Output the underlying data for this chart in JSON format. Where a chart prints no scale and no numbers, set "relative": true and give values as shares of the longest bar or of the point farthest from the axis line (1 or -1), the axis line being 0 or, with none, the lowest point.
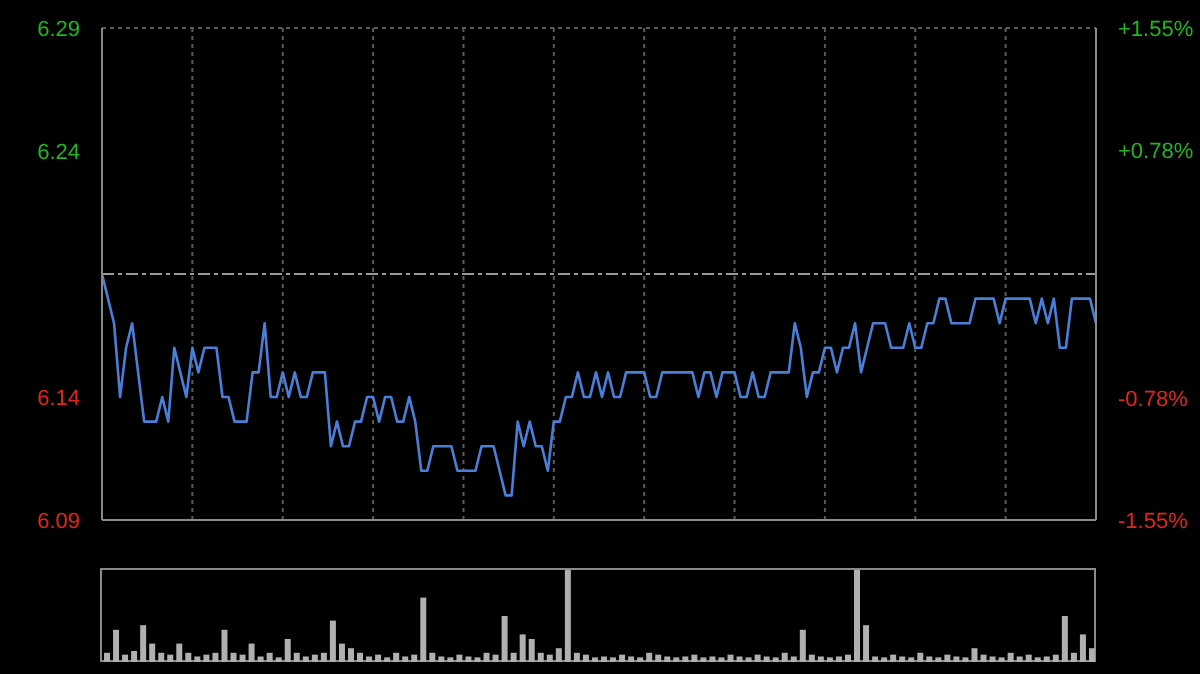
{
  "chart_data": [
    {
      "type": "line",
      "categories": [
        null,
        null,
        null,
        null,
        null,
        null,
        null,
        null,
        null,
        null,
        null,
        null,
        null,
        null,
        null,
        null,
        null,
        null,
        null,
        null,
        null,
        null,
        null,
        null,
        null,
        null,
        null,
        null,
        null,
        null,
        null,
        null,
        null,
        null,
        null,
        null,
        null,
        null,
        null,
        null,
        null,
        null,
        null,
        null,
        null,
        null,
        null,
        null,
        null,
        null,
        null,
        null,
        null,
        null,
        null,
        null,
        null,
        null,
        null,
        null,
        null,
        null,
        null,
        null,
        null,
        null,
        null,
        null,
        null,
        null,
        null,
        null,
        null,
        null,
        null,
        null,
        null,
        null,
        null,
        null,
        null,
        null,
        null,
        null,
        null,
        null,
        null,
        null,
        null,
        null,
        null,
        null,
        null,
        null,
        null,
        null,
        null,
        null,
        null,
        null,
        null,
        null,
        null,
        null,
        null,
        null,
        null,
        null,
        null,
        null,
        null,
        null,
        null,
        null,
        null,
        null,
        null,
        null,
        null,
        null,
        null,
        null,
        null,
        null,
        null,
        null,
        null,
        null,
        null,
        null,
        null,
        null,
        null,
        null,
        null,
        null,
        null,
        null,
        null,
        null,
        null,
        null,
        null,
        null,
        null,
        null,
        null,
        null,
        null,
        null,
        null,
        null,
        null,
        null,
        null,
        null,
        null,
        null,
        null,
        null,
        null,
        null,
        null,
        null,
        null,
        null
      ],
      "series": [
        {
          "color": "#4a7fd8",
          "values": [
            6.19,
            6.18,
            6.17,
            6.14,
            6.16,
            6.17,
            6.15,
            6.13,
            6.13,
            6.13,
            6.14,
            6.13,
            6.16,
            6.15,
            6.14,
            6.16,
            6.15,
            6.16,
            6.16,
            6.16,
            6.14,
            6.14,
            6.13,
            6.13,
            6.13,
            6.15,
            6.15,
            6.17,
            6.14,
            6.14,
            6.15,
            6.14,
            6.15,
            6.14,
            6.14,
            6.15,
            6.15,
            6.15,
            6.12,
            6.13,
            6.12,
            6.12,
            6.13,
            6.13,
            6.14,
            6.14,
            6.13,
            6.14,
            6.14,
            6.13,
            6.13,
            6.14,
            6.13,
            6.11,
            6.11,
            6.12,
            6.12,
            6.12,
            6.12,
            6.11,
            6.11,
            6.11,
            6.11,
            6.12,
            6.12,
            6.12,
            6.11,
            6.1,
            6.1,
            6.13,
            6.12,
            6.13,
            6.12,
            6.12,
            6.11,
            6.13,
            6.13,
            6.14,
            6.14,
            6.15,
            6.14,
            6.14,
            6.15,
            6.14,
            6.15,
            6.14,
            6.14,
            6.15,
            6.15,
            6.15,
            6.15,
            6.14,
            6.14,
            6.15,
            6.15,
            6.15,
            6.15,
            6.15,
            6.15,
            6.14,
            6.15,
            6.15,
            6.14,
            6.15,
            6.15,
            6.15,
            6.14,
            6.14,
            6.15,
            6.14,
            6.14,
            6.15,
            6.15,
            6.15,
            6.15,
            6.17,
            6.16,
            6.14,
            6.15,
            6.15,
            6.16,
            6.16,
            6.15,
            6.16,
            6.16,
            6.17,
            6.15,
            6.16,
            6.17,
            6.17,
            6.17,
            6.16,
            6.16,
            6.16,
            6.17,
            6.16,
            6.16,
            6.17,
            6.17,
            6.18,
            6.18,
            6.17,
            6.17,
            6.17,
            6.17,
            6.18,
            6.18,
            6.18,
            6.18,
            6.17,
            6.18,
            6.18,
            6.18,
            6.18,
            6.18,
            6.17,
            6.18,
            6.17,
            6.18,
            6.16,
            6.16,
            6.18,
            6.18,
            6.18,
            6.18,
            6.17
          ]
        }
      ],
      "ylim": [
        6.09,
        6.29
      ],
      "yticks": [
        6.09,
        6.14,
        6.24,
        6.29
      ],
      "y2lim": [
        -1.55,
        1.55
      ],
      "y2ticks": [
        {
          "value": -1.55,
          "label": "-1.55%"
        },
        {
          "value": -0.78,
          "label": "-0.78%"
        },
        {
          "value": 0.78,
          "label": "+0.78%"
        },
        {
          "value": 1.55,
          "label": "+1.55%"
        }
      ],
      "ref_lines": [
        {
          "axis": "y",
          "value": 6.19,
          "label": null,
          "color": "#9a9a9a",
          "line_style": "dashed"
        }
      ],
      "grid": true,
      "legend": false,
      "marker": "none"
    },
    {
      "type": "bar",
      "relative": true,
      "color": "#b0b0b0",
      "categories": [
        null,
        null,
        null,
        null,
        null,
        null,
        null,
        null,
        null,
        null,
        null,
        null,
        null,
        null,
        null,
        null,
        null,
        null,
        null,
        null,
        null,
        null,
        null,
        null,
        null,
        null,
        null,
        null,
        null,
        null,
        null,
        null,
        null,
        null,
        null,
        null,
        null,
        null,
        null,
        null,
        null,
        null,
        null,
        null,
        null,
        null,
        null,
        null,
        null,
        null,
        null,
        null,
        null,
        null,
        null,
        null,
        null,
        null,
        null,
        null,
        null,
        null,
        null,
        null,
        null,
        null,
        null,
        null,
        null,
        null,
        null,
        null,
        null,
        null,
        null,
        null,
        null,
        null,
        null,
        null,
        null,
        null,
        null,
        null,
        null,
        null,
        null,
        null,
        null,
        null,
        null,
        null,
        null,
        null,
        null,
        null,
        null,
        null,
        null,
        null,
        null,
        null,
        null,
        null,
        null,
        null,
        null,
        null,
        null,
        null
      ],
      "values": [
        0.1,
        0.35,
        0.08,
        0.12,
        0.4,
        0.2,
        0.1,
        0.08,
        0.2,
        0.1,
        0.06,
        0.08,
        0.1,
        0.35,
        0.1,
        0.08,
        0.2,
        0.06,
        0.1,
        0.05,
        0.25,
        0.1,
        0.06,
        0.08,
        0.1,
        0.45,
        0.2,
        0.15,
        0.1,
        0.06,
        0.08,
        0.05,
        0.1,
        0.06,
        0.08,
        0.7,
        0.1,
        0.06,
        0.05,
        0.08,
        0.06,
        0.05,
        0.1,
        0.08,
        0.5,
        0.1,
        0.3,
        0.25,
        0.1,
        0.08,
        0.15,
        1,
        0.1,
        0.08,
        0.05,
        0.06,
        0.05,
        0.08,
        0.06,
        0.05,
        0.1,
        0.08,
        0.06,
        0.05,
        0.06,
        0.08,
        0.05,
        0.06,
        0.05,
        0.08,
        0.06,
        0.05,
        0.08,
        0.06,
        0.05,
        0.1,
        0.06,
        0.35,
        0.08,
        0.06,
        0.05,
        0.06,
        0.08,
        1,
        0.4,
        0.06,
        0.05,
        0.08,
        0.06,
        0.05,
        0.1,
        0.06,
        0.05,
        0.08,
        0.06,
        0.05,
        0.15,
        0.08,
        0.06,
        0.05,
        0.1,
        0.06,
        0.08,
        0.05,
        0.06,
        0.08,
        0.5,
        0.1,
        0.3,
        0.15
      ]
    }
  ]
}
